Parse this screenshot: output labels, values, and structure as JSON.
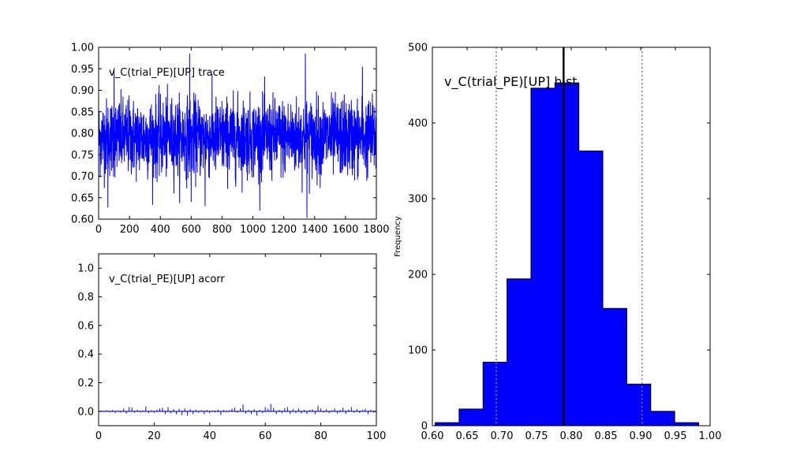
{
  "chart_data": [
    {
      "type": "line",
      "panel": "trace",
      "title": "v_C(trial_PE)[UP] trace",
      "xlabel": "",
      "ylabel": "",
      "xlim": [
        0,
        1800
      ],
      "ylim": [
        0.6,
        1.0
      ],
      "xticks": [
        "0",
        "200",
        "400",
        "600",
        "800",
        "1000",
        "1200",
        "1400",
        "1600",
        "1800"
      ],
      "yticks": [
        "0.60",
        "0.65",
        "0.70",
        "0.75",
        "0.80",
        "0.85",
        "0.90",
        "0.95",
        "1.00"
      ],
      "series_color": "#0000ff",
      "n_samples": 1800,
      "mean": 0.79,
      "notable_points": [
        {
          "x": 60,
          "y": 0.627
        },
        {
          "x": 100,
          "y": 0.952
        },
        {
          "x": 590,
          "y": 0.985
        },
        {
          "x": 600,
          "y": 0.64
        },
        {
          "x": 690,
          "y": 0.63
        },
        {
          "x": 1340,
          "y": 0.985
        },
        {
          "x": 1350,
          "y": 0.603
        },
        {
          "x": 1710,
          "y": 0.955
        }
      ]
    },
    {
      "type": "bar",
      "panel": "acorr",
      "title": "v_C(trial_PE)[UP] acorr",
      "xlabel": "",
      "ylabel": "",
      "xlim": [
        0,
        100
      ],
      "ylim": [
        -0.1,
        1.1
      ],
      "xticks": [
        "0",
        "20",
        "40",
        "60",
        "80",
        "100"
      ],
      "yticks": [
        "0.0",
        "0.2",
        "0.4",
        "0.6",
        "0.8",
        "1.0"
      ],
      "series_color": "#0000ff",
      "lags": [
        1,
        2,
        3,
        4,
        5,
        6,
        7,
        8,
        9,
        10,
        11,
        12,
        13,
        14,
        15,
        16,
        17,
        18,
        19,
        20,
        21,
        22,
        23,
        24,
        25,
        26,
        27,
        28,
        29,
        30,
        31,
        32,
        33,
        34,
        35,
        36,
        37,
        38,
        39,
        40,
        41,
        42,
        43,
        44,
        45,
        46,
        47,
        48,
        49,
        50,
        51,
        52,
        53,
        54,
        55,
        56,
        57,
        58,
        59,
        60,
        61,
        62,
        63,
        64,
        65,
        66,
        67,
        68,
        69,
        70,
        71,
        72,
        73,
        74,
        75,
        76,
        77,
        78,
        79,
        80,
        81,
        82,
        83,
        84,
        85,
        86,
        87,
        88,
        89,
        90,
        91,
        92,
        93,
        94,
        95,
        96,
        97,
        98,
        99
      ],
      "values": [
        0.005,
        -0.004,
        0.008,
        -0.006,
        0.01,
        -0.012,
        0.006,
        -0.008,
        0.02,
        -0.015,
        0.03,
        0.028,
        -0.01,
        0.012,
        -0.008,
        0.006,
        0.035,
        -0.012,
        0.008,
        -0.01,
        0.012,
        0.02,
        0.025,
        -0.018,
        0.03,
        -0.012,
        0.016,
        -0.02,
        0.018,
        -0.025,
        0.02,
        -0.03,
        0.015,
        -0.02,
        0.012,
        -0.01,
        0.008,
        -0.02,
        0.01,
        -0.012,
        0.006,
        -0.008,
        0.012,
        -0.025,
        0.01,
        -0.006,
        0.008,
        0.02,
        0.025,
        -0.01,
        0.02,
        0.048,
        -0.015,
        0.012,
        -0.02,
        0.015,
        -0.03,
        0.01,
        -0.012,
        0.03,
        0.018,
        0.052,
        0.025,
        -0.018,
        0.01,
        -0.012,
        0.022,
        0.03,
        -0.02,
        0.015,
        -0.012,
        0.02,
        -0.015,
        0.012,
        -0.018,
        0.01,
        0.015,
        -0.02,
        0.04,
        0.02,
        -0.01,
        0.015,
        -0.012,
        0.008,
        0.02,
        -0.015,
        0.01,
        0.025,
        -0.018,
        0.012,
        0.03,
        -0.01,
        0.015,
        -0.012,
        0.01,
        0.018,
        -0.02,
        0.012,
        -0.008
      ]
    },
    {
      "type": "bar",
      "panel": "hist",
      "title": "v_C(trial_PE)[UP] hist",
      "xlabel": "",
      "ylabel": "Frequency",
      "xlim": [
        0.6,
        1.0
      ],
      "ylim": [
        0,
        500
      ],
      "xticks": [
        "0.60",
        "0.65",
        "0.70",
        "0.75",
        "0.80",
        "0.85",
        "0.90",
        "0.95",
        "1.00"
      ],
      "yticks": [
        "0",
        "100",
        "200",
        "300",
        "400",
        "500"
      ],
      "bin_edges": [
        0.604,
        0.6385,
        0.673,
        0.7075,
        0.742,
        0.7765,
        0.811,
        0.8455,
        0.88,
        0.9145,
        0.949,
        0.9835
      ],
      "counts": [
        4,
        22,
        84,
        194,
        446,
        453,
        363,
        155,
        55,
        19,
        4
      ],
      "fill_color": "#0000ff",
      "mean_line": 0.789,
      "quantile_lines": [
        0.692,
        0.902
      ]
    }
  ]
}
